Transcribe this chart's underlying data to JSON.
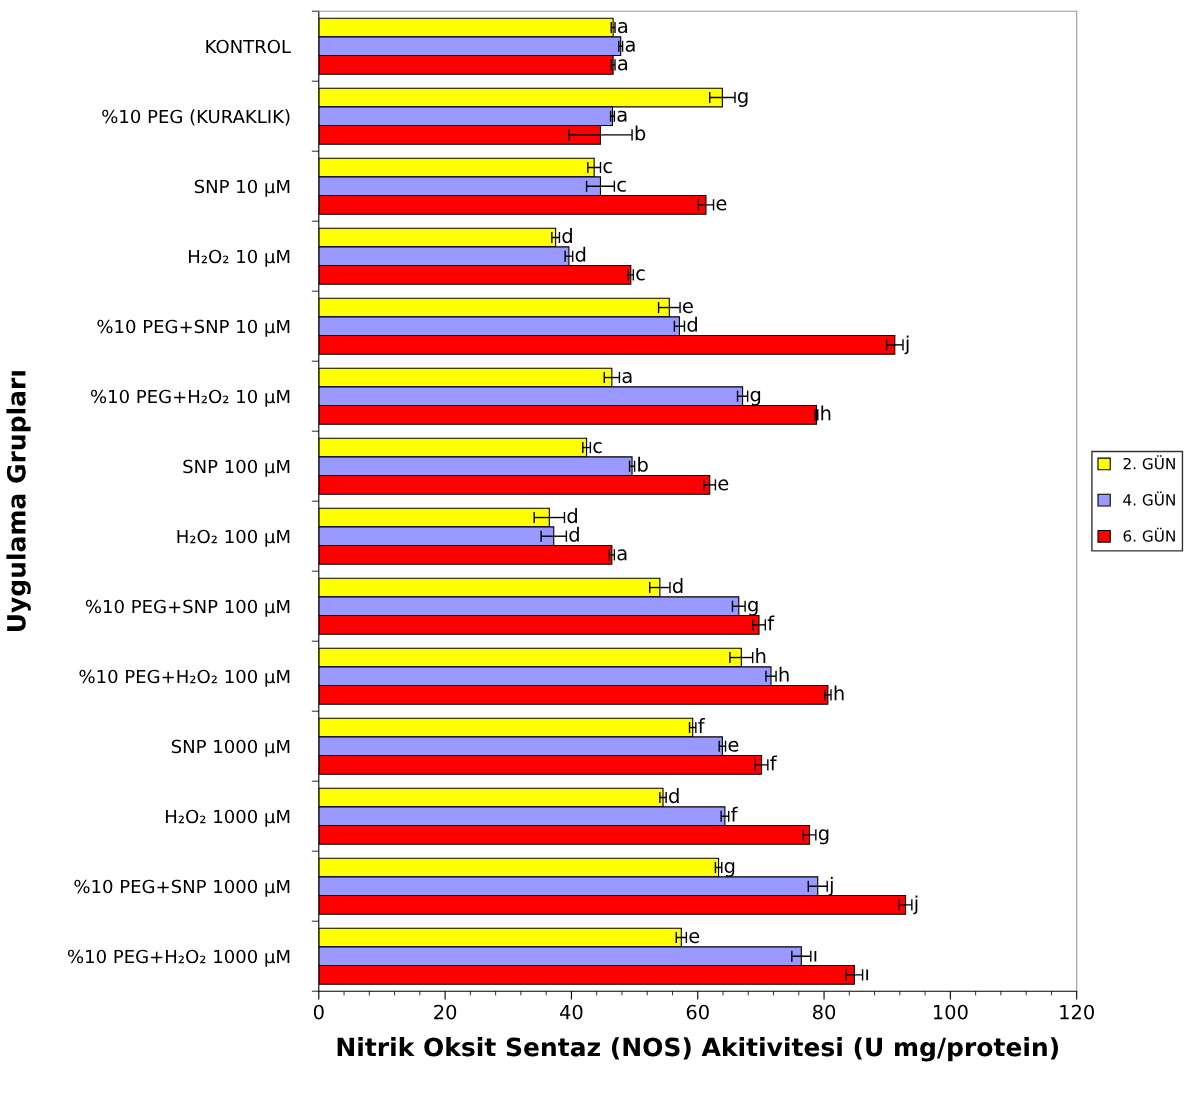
{
  "chart_data": {
    "type": "bar",
    "orientation": "horizontal",
    "xlabel": "Nitrik Oksit Sentaz (NOS) Akitivitesi (U mg/protein)",
    "ylabel": "Uygulama Grupları",
    "categories": [
      "KONTROL",
      "%10 PEG (KURAKLIK)",
      "SNP 10 µM",
      "H₂O₂ 10 µM",
      "%10 PEG+SNP 10 µM",
      "%10 PEG+H₂O₂ 10 µM",
      "SNP 100 µM",
      "H₂O₂ 100 µM",
      "%10 PEG+SNP 100 µM",
      "%10 PEG+H₂O₂ 100 µM",
      "SNP 1000 µM",
      "H₂O₂ 1000 µM",
      "%10 PEG+SNP 1000 µM",
      "%10 PEG+H₂O₂ 1000 µM"
    ],
    "series": [
      {
        "name": "2. GÜN",
        "color": "#ffff00",
        "values": [
          46.6,
          63.9,
          43.6,
          37.5,
          55.5,
          46.4,
          42.4,
          36.5,
          54.0,
          66.9,
          59.2,
          54.5,
          63.3,
          57.4
        ],
        "errors": [
          0.3,
          2.0,
          1.0,
          0.6,
          1.7,
          1.2,
          0.6,
          2.4,
          1.6,
          1.8,
          0.5,
          0.5,
          0.5,
          0.8
        ],
        "value_labels": [
          "a",
          "g",
          "c",
          "d",
          "e",
          "a",
          "c",
          "d",
          "d",
          "h",
          "f",
          "d",
          "g",
          "e"
        ]
      },
      {
        "name": "4. GÜN",
        "color": "#9999ff",
        "values": [
          47.8,
          46.5,
          44.6,
          39.6,
          57.1,
          67.1,
          49.6,
          37.2,
          66.5,
          71.6,
          63.9,
          64.3,
          79.0,
          76.4
        ],
        "errors": [
          0.3,
          0.3,
          2.2,
          0.6,
          0.8,
          0.8,
          0.4,
          2.0,
          1.0,
          0.8,
          0.5,
          0.6,
          1.5,
          1.5
        ],
        "value_labels": [
          "a",
          "a",
          "c",
          "d",
          "d",
          "g",
          "b",
          "d",
          "g",
          "h",
          "e",
          "f",
          "j",
          "ı"
        ]
      },
      {
        "name": "6. GÜN",
        "color": "#ff0000",
        "values": [
          46.6,
          44.6,
          61.3,
          49.4,
          91.2,
          78.8,
          61.9,
          46.4,
          69.7,
          80.6,
          70.1,
          77.7,
          92.9,
          84.8
        ],
        "errors": [
          0.3,
          5.0,
          1.2,
          0.4,
          1.3,
          0.2,
          0.9,
          0.4,
          1.0,
          0.5,
          1.0,
          1.0,
          1.0,
          1.3
        ],
        "value_labels": [
          "a",
          "b",
          "e",
          "c",
          "j",
          "h",
          "e",
          "a",
          "f",
          "h",
          "f",
          "g",
          "j",
          "ı"
        ]
      }
    ],
    "xlim": [
      0,
      120
    ],
    "xticks": [
      0,
      20,
      40,
      60,
      80,
      100,
      120
    ],
    "grid": false,
    "legend": "right"
  }
}
